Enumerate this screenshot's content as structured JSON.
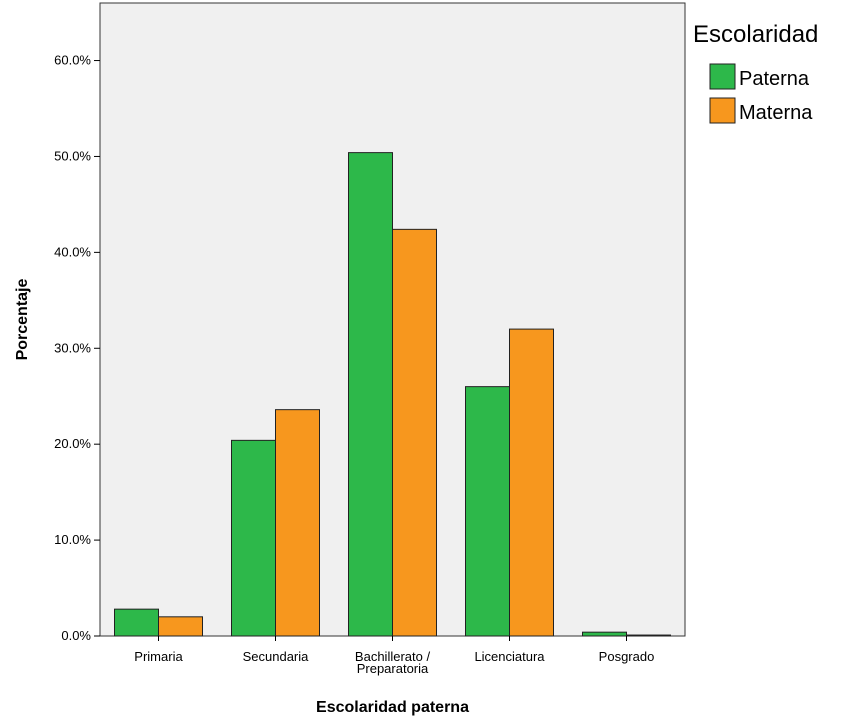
{
  "chart_data": {
    "type": "bar",
    "categories": [
      "Primaria",
      "Secundaria",
      "Bachillerato / Preparatoria",
      "Licenciatura",
      "Posgrado"
    ],
    "category_label_lines": [
      [
        "Primaria"
      ],
      [
        "Secundaria"
      ],
      [
        "Bachillerato /",
        "Preparatoria"
      ],
      [
        "Licenciatura"
      ],
      [
        "Posgrado"
      ]
    ],
    "series": [
      {
        "name": "Paterna",
        "values": [
          2.8,
          20.4,
          50.4,
          26.0,
          0.4
        ],
        "color": "#2db84a"
      },
      {
        "name": "Materna",
        "values": [
          2.0,
          23.6,
          42.4,
          32.0,
          0.1
        ],
        "color": "#f7971e"
      }
    ],
    "xlabel": "Escolaridad paterna",
    "ylabel": "Porcentaje",
    "ylim": [
      0,
      66
    ],
    "yticks": [
      0,
      10,
      20,
      30,
      40,
      50,
      60
    ],
    "ytick_labels": [
      "0.0%",
      "10.0%",
      "20.0%",
      "30.0%",
      "40.0%",
      "50.0%",
      "60.0%"
    ],
    "legend_title": "Escolaridad",
    "legend_position": "top-right",
    "plot_background": "#f0f0f0",
    "grid": false
  }
}
